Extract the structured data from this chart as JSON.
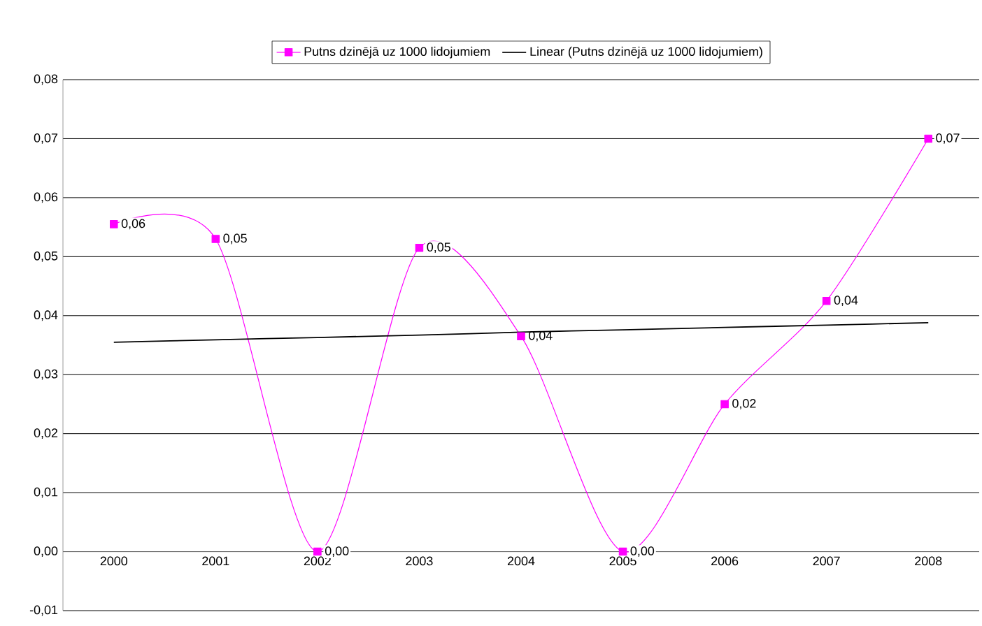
{
  "chart_data": {
    "type": "line",
    "categories": [
      "2000",
      "2001",
      "2002",
      "2003",
      "2004",
      "2005",
      "2006",
      "2007",
      "2008"
    ],
    "series": [
      {
        "name": "Putns dzinējā uz 1000 lidojumiem",
        "color": "#ff00ff",
        "marker": "square",
        "values": [
          0.0555,
          0.053,
          0.0,
          0.0515,
          0.0365,
          0.0,
          0.025,
          0.0425,
          0.07
        ],
        "value_labels": [
          "0,06",
          "0,05",
          "0,00",
          "0,05",
          "0,04",
          "0,00",
          "0,02",
          "0,04",
          "0,07"
        ]
      },
      {
        "name": "Linear (Putns dzinējā uz 1000 lidojumiem)",
        "color": "#000000",
        "marker": "none",
        "values": [
          0.0355,
          0.0359,
          0.0363,
          0.0367,
          0.0372,
          0.0376,
          0.038,
          0.0384,
          0.0388
        ]
      }
    ],
    "ylim": [
      -0.01,
      0.08
    ],
    "yticks": [
      {
        "value": -0.01,
        "label": "-0,01"
      },
      {
        "value": 0,
        "label": "0,00"
      },
      {
        "value": 0.01,
        "label": "0,01"
      },
      {
        "value": 0.02,
        "label": "0,02"
      },
      {
        "value": 0.03,
        "label": "0,03"
      },
      {
        "value": 0.04,
        "label": "0,04"
      },
      {
        "value": 0.05,
        "label": "0,05"
      },
      {
        "value": 0.06,
        "label": "0,06"
      },
      {
        "value": 0.07,
        "label": "0,07"
      },
      {
        "value": 0.08,
        "label": "0,08"
      }
    ],
    "grid": "y",
    "legend": "top",
    "line_style": "solid"
  }
}
